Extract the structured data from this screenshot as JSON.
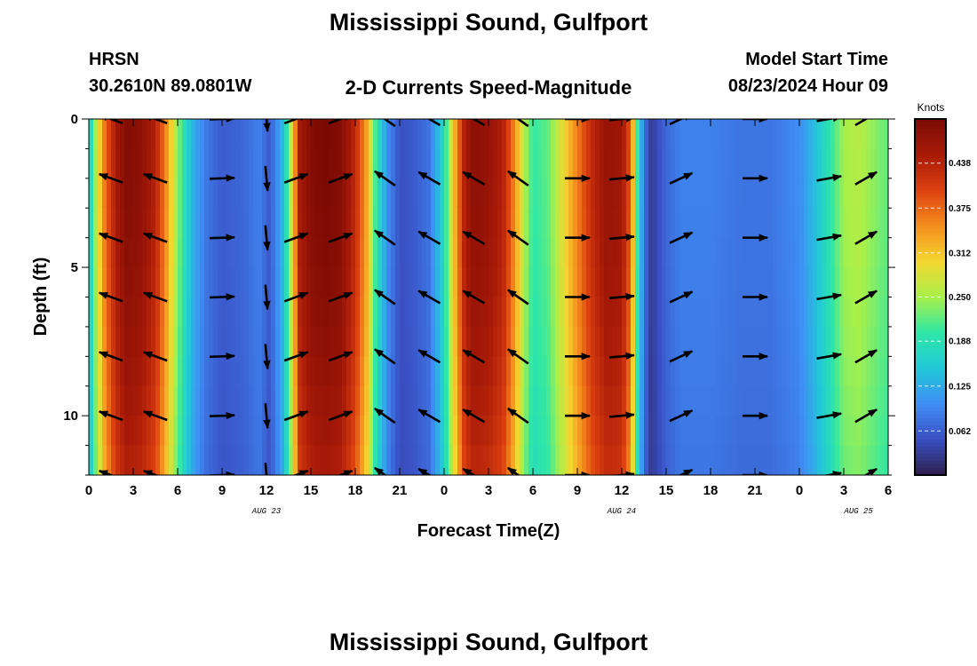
{
  "header": {
    "title": "Mississippi Sound, Gulfport",
    "station_id": "HRSN",
    "coordinates": "30.2610N  89.0801W",
    "subtitle": "2-D Currents Speed-Magnitude",
    "model_start_label": "Model Start Time",
    "model_start_value": "08/23/2024 Hour 09"
  },
  "footer": {
    "title": "Mississippi Sound, Gulfport"
  },
  "chart_data": {
    "type": "heatmap",
    "title": "2-D Currents Speed-Magnitude",
    "xlabel": "Forecast Time(Z)",
    "ylabel": "Depth (ft)",
    "x_tick_labels": [
      "0",
      "3",
      "6",
      "9",
      "12",
      "15",
      "18",
      "21",
      "0",
      "3",
      "6",
      "9",
      "12",
      "15",
      "18",
      "21",
      "0",
      "3",
      "6"
    ],
    "x_range_hours": [
      0,
      54
    ],
    "date_labels": [
      {
        "text": "AUG 23",
        "hour": 12
      },
      {
        "text": "AUG 24",
        "hour": 36
      },
      {
        "text": "AUG 25",
        "hour": 52
      }
    ],
    "y_tick_labels": [
      "0",
      "5",
      "10"
    ],
    "y_range_ft": [
      0,
      12
    ],
    "y_inverted": true,
    "colorbar": {
      "unit": "Knots",
      "tick_labels": [
        "0.438",
        "0.375",
        "0.312",
        "0.250",
        "0.188",
        "0.125",
        "0.062"
      ],
      "tick_values": [
        0.438,
        0.375,
        0.312,
        0.25,
        0.188,
        0.125,
        0.062
      ],
      "range": [
        0.0,
        0.5
      ],
      "colors": [
        "#2c1f4a",
        "#3a4fc4",
        "#3f8ef5",
        "#22c8d8",
        "#2fe7a6",
        "#a8f04a",
        "#f5d630",
        "#f58d1e",
        "#dc4010",
        "#a81a08",
        "#7a0a04"
      ]
    },
    "speed_profile": {
      "hours": [
        0,
        0.6,
        1.1,
        1.8,
        2.5,
        3.5,
        4.5,
        5.3,
        6,
        6.6,
        7.2,
        8,
        9,
        10.5,
        11.5,
        12.2,
        12.6,
        13.2,
        13.8,
        14.2,
        15,
        16,
        17,
        18,
        18.8,
        19.4,
        20.2,
        21,
        22,
        23,
        24,
        24.7,
        25.4,
        26,
        27,
        28,
        28.7,
        29.4,
        30,
        31,
        32,
        33,
        34,
        35,
        36,
        36.6,
        37,
        37.5,
        38,
        38.5,
        39,
        40,
        42,
        44,
        46,
        48,
        49,
        50,
        50.5,
        51,
        52,
        53,
        54
      ],
      "speed_knots": [
        0.15,
        0.28,
        0.37,
        0.45,
        0.49,
        0.48,
        0.44,
        0.34,
        0.24,
        0.17,
        0.12,
        0.08,
        0.06,
        0.07,
        0.09,
        0.06,
        0.09,
        0.15,
        0.3,
        0.45,
        0.49,
        0.5,
        0.49,
        0.43,
        0.33,
        0.2,
        0.1,
        0.05,
        0.06,
        0.08,
        0.18,
        0.32,
        0.45,
        0.48,
        0.47,
        0.44,
        0.36,
        0.26,
        0.2,
        0.22,
        0.29,
        0.36,
        0.43,
        0.47,
        0.46,
        0.38,
        0.22,
        0.08,
        0.03,
        0.05,
        0.07,
        0.09,
        0.09,
        0.08,
        0.08,
        0.1,
        0.14,
        0.19,
        0.22,
        0.25,
        0.26,
        0.24,
        0.22
      ]
    },
    "vector_columns": [
      {
        "hour": 1.5,
        "angle_deg": 200
      },
      {
        "hour": 4.5,
        "angle_deg": 200
      },
      {
        "hour": 9,
        "angle_deg": -2
      },
      {
        "hour": 12,
        "angle_deg": 85
      },
      {
        "hour": 14,
        "angle_deg": -20
      },
      {
        "hour": 17,
        "angle_deg": -20
      },
      {
        "hour": 20,
        "angle_deg": -145
      },
      {
        "hour": 23,
        "angle_deg": -150
      },
      {
        "hour": 26,
        "angle_deg": -150
      },
      {
        "hour": 29,
        "angle_deg": -145
      },
      {
        "hour": 33,
        "angle_deg": 0
      },
      {
        "hour": 36,
        "angle_deg": -5
      },
      {
        "hour": 40,
        "angle_deg": -25
      },
      {
        "hour": 45,
        "angle_deg": 0
      },
      {
        "hour": 50,
        "angle_deg": -10
      },
      {
        "hour": 52.5,
        "angle_deg": -30
      }
    ],
    "vector_depths_ft": [
      0,
      2,
      4,
      6,
      8,
      10,
      12
    ]
  }
}
